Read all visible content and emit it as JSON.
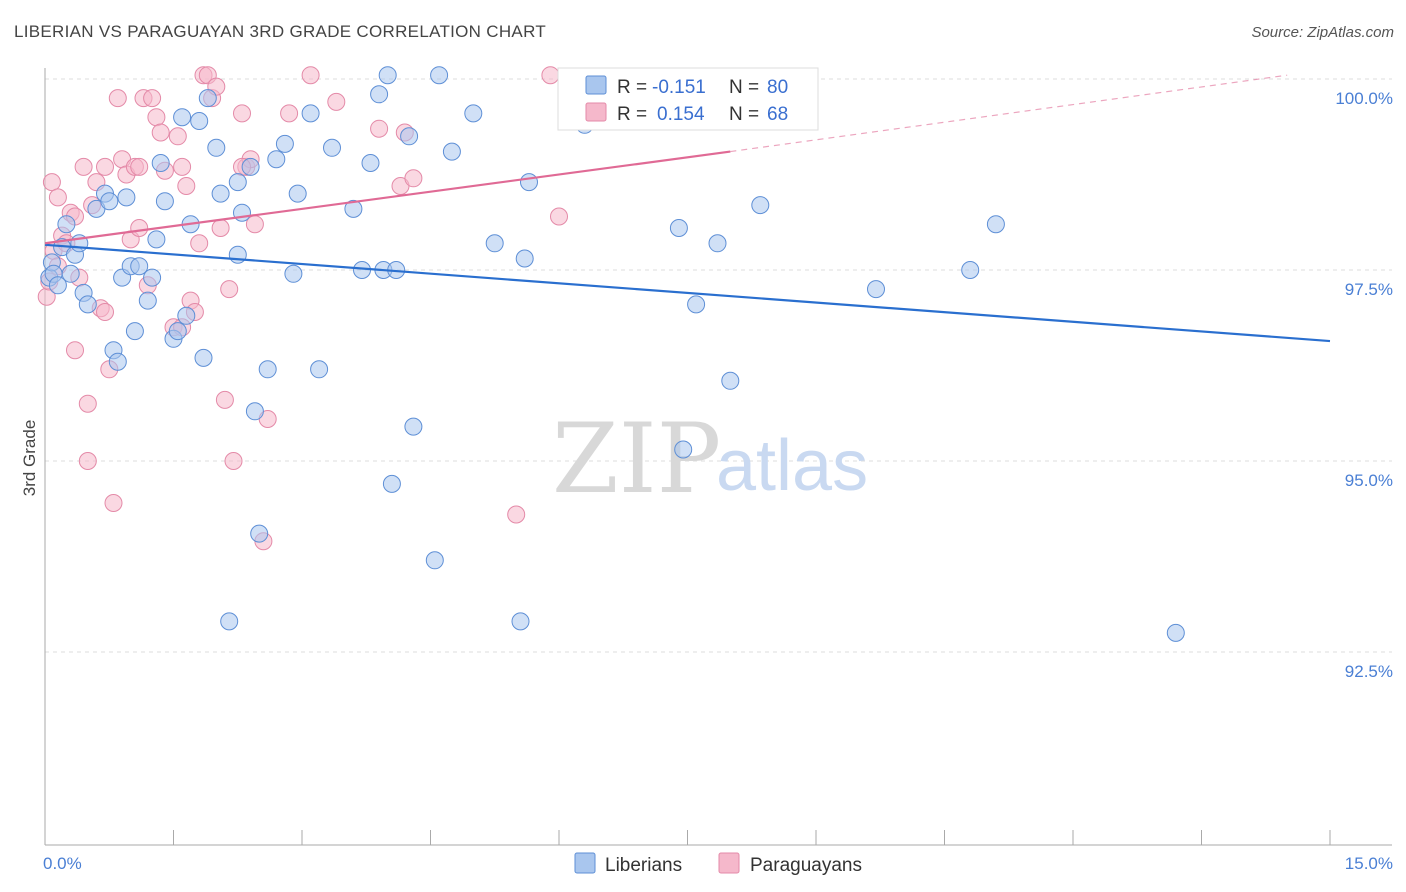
{
  "title": "LIBERIAN VS PARAGUAYAN 3RD GRADE CORRELATION CHART",
  "source": "Source: ZipAtlas.com",
  "watermark": {
    "zip": "ZIP",
    "atlas": "atlas"
  },
  "legend": {
    "r_label": "R =",
    "n_label": "N =",
    "items": [
      {
        "r": "-0.151",
        "n": "80"
      },
      {
        "r": "0.154",
        "n": "68"
      }
    ]
  },
  "bottom_legend": [
    "Liberians",
    "Paraguayans"
  ],
  "colors": {
    "blue_fill": "#a9c6ee",
    "blue_stroke": "#5e8fd6",
    "blue_line": "#2a6fcf",
    "pink_fill": "#f5b8cb",
    "pink_stroke": "#e48aa8",
    "pink_line": "#e06a95",
    "grid": "#dddddd",
    "tick_text": "#4a7fd4"
  },
  "chart_data": {
    "type": "scatter",
    "xlabel": "",
    "ylabel": "3rd Grade",
    "xlim": [
      0,
      15
    ],
    "ylim": [
      90.0,
      100.2
    ],
    "x_tick_labels": [
      "0.0%",
      "15.0%"
    ],
    "y_ticks": [
      92.5,
      95.0,
      97.5,
      100.0
    ],
    "y_tick_labels": [
      "92.5%",
      "95.0%",
      "97.5%",
      "100.0%"
    ],
    "grid": true,
    "legend_position": "top-center",
    "series": [
      {
        "name": "Liberians",
        "trend": {
          "x": [
            0,
            15
          ],
          "y": [
            97.83,
            96.57
          ]
        },
        "points": [
          [
            0.05,
            97.4
          ],
          [
            0.08,
            97.6
          ],
          [
            0.1,
            97.45
          ],
          [
            0.15,
            97.3
          ],
          [
            0.2,
            97.8
          ],
          [
            0.25,
            98.1
          ],
          [
            0.3,
            97.45
          ],
          [
            0.35,
            97.7
          ],
          [
            0.4,
            97.85
          ],
          [
            0.45,
            97.2
          ],
          [
            0.5,
            97.05
          ],
          [
            0.6,
            98.3
          ],
          [
            0.7,
            98.5
          ],
          [
            0.75,
            98.4
          ],
          [
            0.8,
            96.45
          ],
          [
            0.85,
            96.3
          ],
          [
            0.9,
            97.4
          ],
          [
            0.95,
            98.45
          ],
          [
            1.0,
            97.55
          ],
          [
            1.05,
            96.7
          ],
          [
            1.1,
            97.55
          ],
          [
            1.2,
            97.1
          ],
          [
            1.25,
            97.4
          ],
          [
            1.3,
            97.9
          ],
          [
            1.35,
            98.9
          ],
          [
            1.4,
            98.4
          ],
          [
            1.5,
            96.6
          ],
          [
            1.55,
            96.7
          ],
          [
            1.6,
            99.5
          ],
          [
            1.65,
            96.9
          ],
          [
            1.7,
            98.1
          ],
          [
            1.8,
            99.45
          ],
          [
            1.85,
            96.35
          ],
          [
            1.9,
            99.75
          ],
          [
            2.0,
            99.1
          ],
          [
            2.05,
            98.5
          ],
          [
            2.15,
            92.9
          ],
          [
            2.25,
            97.7
          ],
          [
            2.25,
            98.65
          ],
          [
            2.3,
            98.25
          ],
          [
            2.4,
            98.85
          ],
          [
            2.45,
            95.65
          ],
          [
            2.5,
            94.05
          ],
          [
            2.6,
            96.2
          ],
          [
            2.7,
            98.95
          ],
          [
            2.8,
            99.15
          ],
          [
            2.9,
            97.45
          ],
          [
            2.95,
            98.5
          ],
          [
            3.1,
            99.55
          ],
          [
            3.2,
            96.2
          ],
          [
            3.35,
            99.1
          ],
          [
            3.6,
            98.3
          ],
          [
            3.7,
            97.5
          ],
          [
            3.8,
            98.9
          ],
          [
            3.9,
            99.8
          ],
          [
            3.95,
            97.5
          ],
          [
            4.0,
            100.05
          ],
          [
            4.05,
            94.7
          ],
          [
            4.1,
            97.5
          ],
          [
            4.25,
            99.25
          ],
          [
            4.3,
            95.45
          ],
          [
            4.55,
            93.7
          ],
          [
            4.6,
            100.05
          ],
          [
            4.75,
            99.05
          ],
          [
            5.0,
            99.55
          ],
          [
            5.25,
            97.85
          ],
          [
            5.55,
            92.9
          ],
          [
            5.6,
            97.65
          ],
          [
            5.65,
            98.65
          ],
          [
            6.3,
            99.4
          ],
          [
            7.45,
            95.15
          ],
          [
            7.4,
            98.05
          ],
          [
            7.6,
            97.05
          ],
          [
            7.85,
            97.85
          ],
          [
            8.0,
            96.05
          ],
          [
            8.35,
            98.35
          ],
          [
            9.7,
            97.25
          ],
          [
            10.8,
            97.5
          ],
          [
            11.1,
            98.1
          ],
          [
            13.2,
            92.75
          ]
        ]
      },
      {
        "name": "Paraguayans",
        "trend": {
          "x": [
            0,
            8.0
          ],
          "y": [
            97.85,
            99.05
          ],
          "dashed_to": {
            "x": 14.5,
            "y": 100.05
          }
        },
        "points": [
          [
            0.02,
            97.15
          ],
          [
            0.05,
            97.35
          ],
          [
            0.08,
            98.65
          ],
          [
            0.1,
            97.75
          ],
          [
            0.15,
            98.45
          ],
          [
            0.2,
            97.95
          ],
          [
            0.25,
            97.85
          ],
          [
            0.3,
            98.25
          ],
          [
            0.35,
            96.45
          ],
          [
            0.4,
            97.4
          ],
          [
            0.45,
            98.85
          ],
          [
            0.5,
            95.75
          ],
          [
            0.5,
            95.0
          ],
          [
            0.55,
            98.35
          ],
          [
            0.6,
            98.65
          ],
          [
            0.65,
            97.0
          ],
          [
            0.7,
            98.85
          ],
          [
            0.75,
            96.2
          ],
          [
            0.8,
            94.45
          ],
          [
            0.85,
            99.75
          ],
          [
            0.9,
            98.95
          ],
          [
            0.95,
            98.75
          ],
          [
            1.0,
            97.9
          ],
          [
            1.05,
            98.85
          ],
          [
            1.1,
            98.05
          ],
          [
            1.1,
            98.85
          ],
          [
            1.15,
            99.75
          ],
          [
            1.2,
            97.3
          ],
          [
            1.25,
            99.75
          ],
          [
            1.3,
            99.5
          ],
          [
            1.35,
            99.3
          ],
          [
            1.4,
            98.8
          ],
          [
            1.5,
            96.75
          ],
          [
            1.55,
            99.25
          ],
          [
            1.6,
            96.75
          ],
          [
            1.65,
            98.6
          ],
          [
            1.7,
            97.1
          ],
          [
            1.75,
            96.95
          ],
          [
            1.8,
            97.85
          ],
          [
            1.85,
            100.05
          ],
          [
            1.9,
            100.05
          ],
          [
            1.95,
            99.75
          ],
          [
            2.0,
            99.9
          ],
          [
            2.05,
            98.05
          ],
          [
            2.1,
            95.8
          ],
          [
            2.15,
            97.25
          ],
          [
            2.2,
            95.0
          ],
          [
            2.3,
            99.55
          ],
          [
            2.35,
            98.85
          ],
          [
            2.4,
            98.95
          ],
          [
            2.45,
            98.1
          ],
          [
            2.55,
            93.95
          ],
          [
            2.6,
            95.55
          ],
          [
            2.85,
            99.55
          ],
          [
            3.1,
            100.05
          ],
          [
            3.4,
            99.7
          ],
          [
            3.9,
            99.35
          ],
          [
            4.15,
            98.6
          ],
          [
            4.2,
            99.3
          ],
          [
            4.3,
            98.7
          ],
          [
            5.5,
            94.3
          ],
          [
            5.9,
            100.05
          ],
          [
            6.0,
            98.2
          ],
          [
            0.15,
            97.55
          ],
          [
            0.7,
            96.95
          ],
          [
            1.6,
            98.85
          ],
          [
            2.3,
            98.85
          ],
          [
            0.35,
            98.2
          ]
        ]
      }
    ]
  }
}
